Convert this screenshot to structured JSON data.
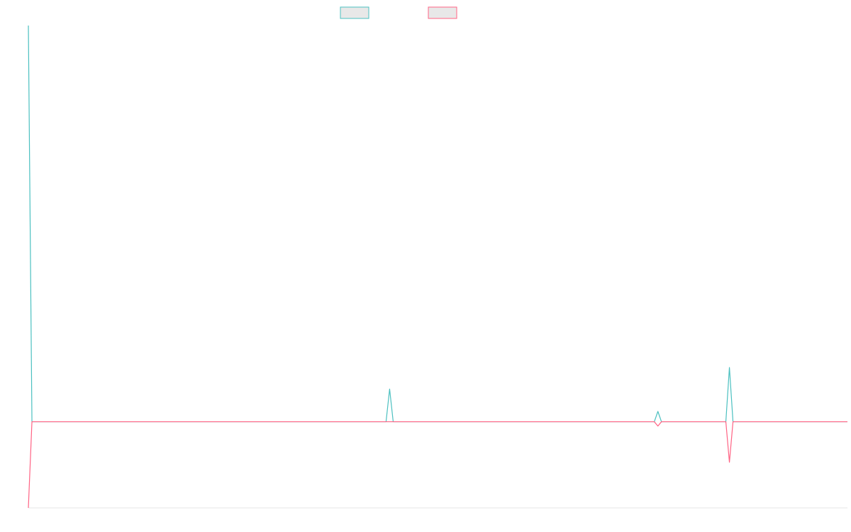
{
  "chart_data": {
    "type": "line",
    "title": "",
    "xlabel": "",
    "ylabel": "",
    "grid": false,
    "legend_position": "top",
    "x": [
      0,
      1,
      2,
      100,
      101,
      102,
      175,
      176,
      177,
      195,
      196,
      197,
      229
    ],
    "xlim": [
      0,
      229
    ],
    "ylim": [
      -100,
      460
    ],
    "series": [
      {
        "color": "#4bc0c0",
        "values": [
          460,
          0,
          0,
          0,
          38,
          0,
          0,
          12,
          0,
          0,
          63,
          0,
          0
        ]
      },
      {
        "color": "#ff6384",
        "values": [
          -100,
          0,
          0,
          0,
          0,
          0,
          0,
          -5,
          0,
          0,
          -47,
          0,
          0
        ]
      }
    ]
  }
}
